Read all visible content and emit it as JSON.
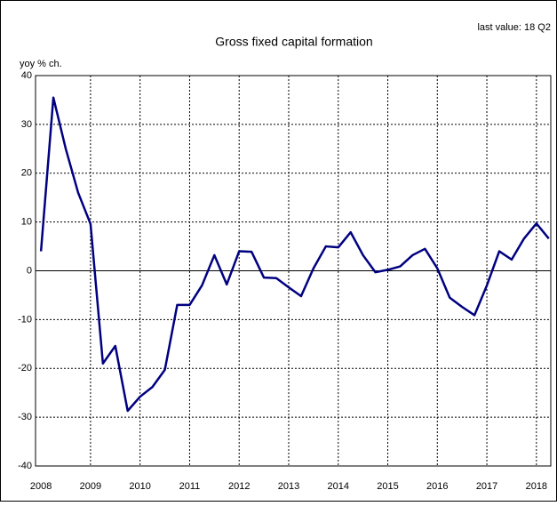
{
  "chart_data": {
    "type": "line",
    "title": "Gross fixed capital formation",
    "subtitle": "last value: 18 Q2",
    "y_label": "yoy % ch.",
    "x": [
      2008,
      2008.25,
      2008.5,
      2008.75,
      2009,
      2009.25,
      2009.5,
      2009.75,
      2010,
      2010.25,
      2010.5,
      2010.75,
      2011,
      2011.25,
      2011.5,
      2011.75,
      2012,
      2012.25,
      2012.5,
      2012.75,
      2013,
      2013.25,
      2013.5,
      2013.75,
      2014,
      2014.25,
      2014.5,
      2014.75,
      2015,
      2015.25,
      2015.5,
      2015.75,
      2016,
      2016.25,
      2016.5,
      2016.75,
      2017,
      2017.25,
      2017.5,
      2017.75,
      2018,
      2018.25
    ],
    "series": [
      {
        "name": "Gross fixed capital formation",
        "color": "#000080",
        "values": [
          4,
          35.5,
          25,
          16,
          9.6,
          -19,
          -15.4,
          -28.7,
          -25.8,
          -23.8,
          -20.3,
          -7,
          -7,
          -3,
          3.2,
          -2.8,
          4,
          3.9,
          -1.4,
          -1.5,
          -3.4,
          -5.2,
          0.5,
          5,
          4.8,
          7.9,
          3.2,
          -0.3,
          0.2,
          0.9,
          3.2,
          4.5,
          0.5,
          -5.5,
          -7.4,
          -9.1,
          -3,
          4,
          2.3,
          6.6,
          9.7,
          6.6
        ]
      }
    ],
    "xlim": [
      2007.89,
      2018.29
    ],
    "xticks": [
      2008,
      2009,
      2010,
      2011,
      2012,
      2013,
      2014,
      2015,
      2016,
      2017,
      2018
    ],
    "ylim": [
      -40,
      40
    ],
    "yticks": [
      -40,
      -30,
      -20,
      -10,
      0,
      10,
      20,
      30,
      40
    ],
    "grid": true
  }
}
